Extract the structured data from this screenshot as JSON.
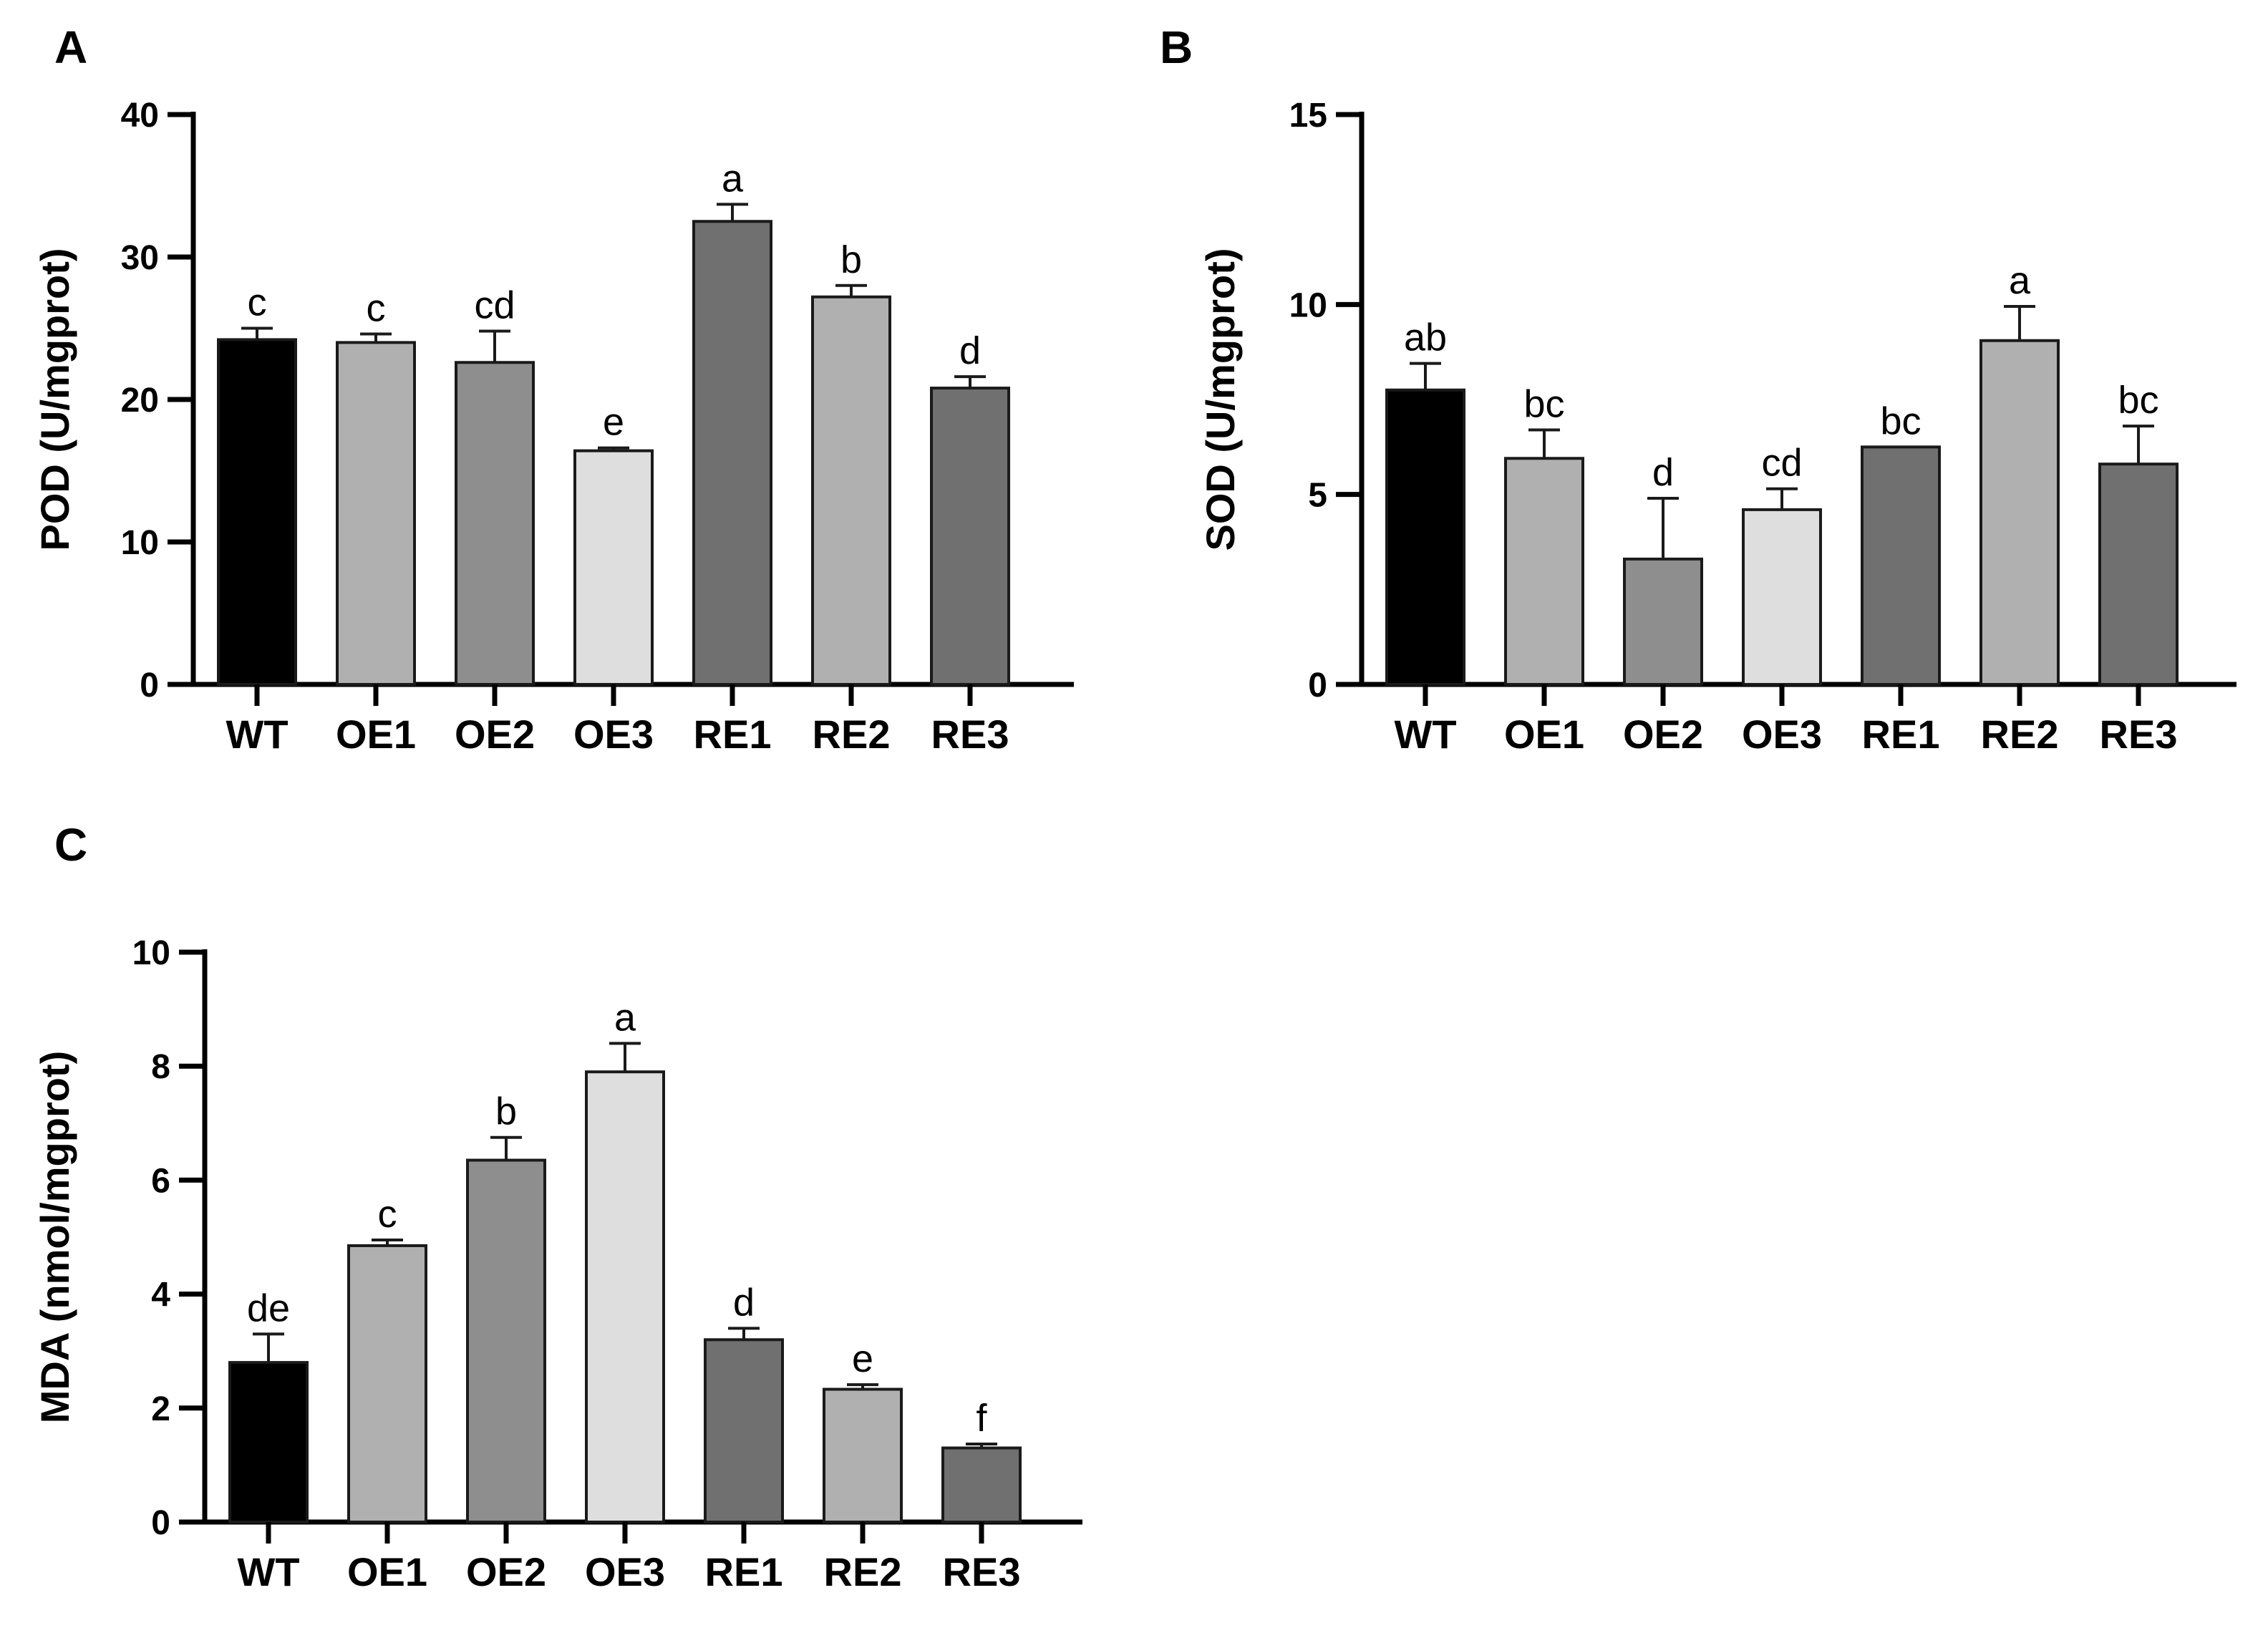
{
  "chart_data": [
    {
      "panel": "A",
      "type": "bar",
      "title": "",
      "xlabel": "",
      "ylabel": "POD (U/mgprot)",
      "ylim": [
        0,
        40
      ],
      "yticks": [
        0,
        10,
        20,
        30,
        40
      ],
      "categories": [
        "WT",
        "OE1",
        "OE2",
        "OE3",
        "RE1",
        "RE2",
        "RE3"
      ],
      "values": [
        24.2,
        24.0,
        22.6,
        16.4,
        32.5,
        27.2,
        20.8
      ],
      "errors": [
        0.8,
        0.6,
        2.2,
        0.2,
        1.2,
        0.8,
        0.8
      ],
      "letters": [
        "c",
        "c",
        "cd",
        "e",
        "a",
        "b",
        "d"
      ],
      "colors": [
        "#000000",
        "#b0b0b0",
        "#8e8e8e",
        "#dedede",
        "#707070",
        "#b0b0b0",
        "#707070"
      ]
    },
    {
      "panel": "B",
      "type": "bar",
      "title": "",
      "xlabel": "",
      "ylabel": "SOD (U/mgprot)",
      "ylim": [
        0,
        15
      ],
      "yticks": [
        0,
        5,
        10,
        15
      ],
      "categories": [
        "WT",
        "OE1",
        "OE2",
        "OE3",
        "RE1",
        "RE2",
        "RE3"
      ],
      "values": [
        7.75,
        5.95,
        3.3,
        4.6,
        6.25,
        9.05,
        5.8
      ],
      "errors": [
        0.7,
        0.75,
        1.6,
        0.55,
        0.0,
        0.9,
        1.0
      ],
      "letters": [
        "ab",
        "bc",
        "d",
        "cd",
        "bc",
        "a",
        "bc"
      ],
      "colors": [
        "#000000",
        "#b0b0b0",
        "#8e8e8e",
        "#dedede",
        "#707070",
        "#b0b0b0",
        "#707070"
      ]
    },
    {
      "panel": "C",
      "type": "bar",
      "title": "",
      "xlabel": "",
      "ylabel": "MDA (nmol/mgprot)",
      "ylim": [
        0,
        10
      ],
      "yticks": [
        0,
        2,
        4,
        6,
        8,
        10
      ],
      "categories": [
        "WT",
        "OE1",
        "OE2",
        "OE3",
        "RE1",
        "RE2",
        "RE3"
      ],
      "values": [
        2.8,
        4.85,
        6.35,
        7.9,
        3.2,
        2.33,
        1.3
      ],
      "errors": [
        0.5,
        0.1,
        0.4,
        0.5,
        0.2,
        0.08,
        0.07
      ],
      "letters": [
        "de",
        "c",
        "b",
        "a",
        "d",
        "e",
        "f"
      ],
      "colors": [
        "#000000",
        "#b0b0b0",
        "#8e8e8e",
        "#dedede",
        "#707070",
        "#b0b0b0",
        "#707070"
      ]
    }
  ]
}
